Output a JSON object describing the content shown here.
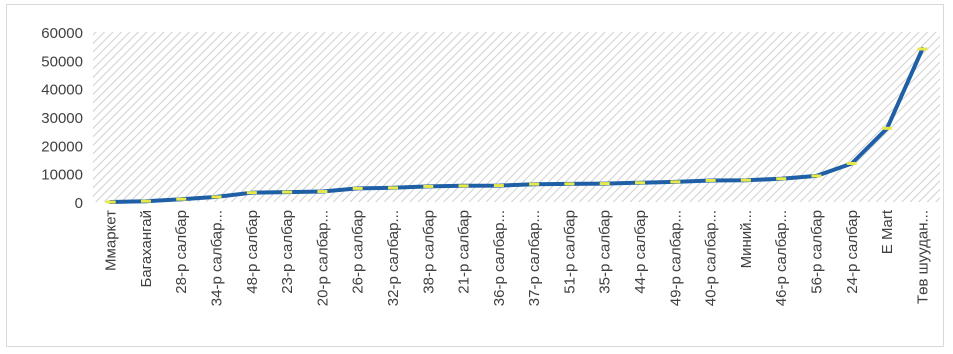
{
  "chart_data": {
    "type": "line",
    "categories": [
      "Ммаркет",
      "Багахангай",
      "28-р салбар",
      "34-р салбар...",
      "48-р салбар",
      "23-р салбар",
      "20-р салбар...",
      "26-р салбар",
      "32-р салбар...",
      "38-р салбар",
      "21-р салбар",
      "36-р салбар...",
      "37-р салбар...",
      "51-р салбар",
      "35-р салбар",
      "44-р салбар",
      "49-р салбар...",
      "40-р салбар...",
      "Миний...",
      "46-р салбар...",
      "56-р салбар",
      "24-р салбар",
      "E Mart",
      "Төв шуудан..."
    ],
    "values": [
      0,
      300,
      1000,
      1800,
      3300,
      3500,
      3700,
      4800,
      5000,
      5500,
      5700,
      5800,
      6300,
      6400,
      6500,
      6800,
      7100,
      7600,
      7700,
      8200,
      9200,
      13600,
      26000,
      54000
    ],
    "title": "",
    "xlabel": "",
    "ylabel": "",
    "ylim": [
      0,
      60000
    ],
    "yticks": [
      0,
      10000,
      20000,
      30000,
      40000,
      50000,
      60000
    ],
    "grid": false,
    "legend": "none",
    "colors": {
      "line": "#1f5fa6",
      "marker": "#e8e84a",
      "plot_fill": "#e6e6e6",
      "axis_text": "#404040"
    }
  }
}
